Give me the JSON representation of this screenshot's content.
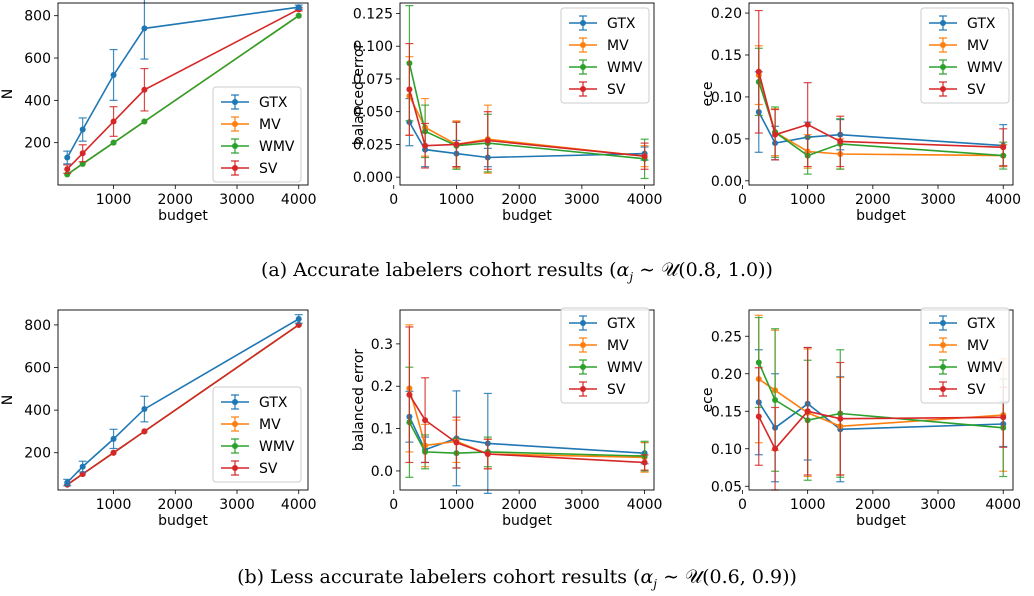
{
  "captions": {
    "a": {
      "prefix": "(a) Accurate labelers cohort results (",
      "alpha": "α",
      "sub": "j",
      "rel": " ∼ ",
      "dist": "𝒰",
      "args": "(0.8, 1.0))"
    },
    "b": {
      "prefix": "(b) Less accurate labelers cohort results (",
      "alpha": "α",
      "sub": "j",
      "rel": " ∼ ",
      "dist": "𝒰",
      "args": "(0.6, 0.9))"
    }
  },
  "colors": {
    "GTX": "#1f77b4",
    "MV": "#ff7f0e",
    "WMV": "#2ca02c",
    "SV": "#d62728"
  },
  "chart_data": [
    {
      "type": "line",
      "xlabel": "budget",
      "ylabel": "N",
      "xlim": [
        100,
        4150
      ],
      "ylim": [
        0,
        860
      ],
      "xticks": [
        1000,
        2000,
        3000,
        4000
      ],
      "yticks": [
        200,
        400,
        600,
        800
      ],
      "legend": "lower-right",
      "x": [
        250,
        500,
        1000,
        1500,
        4000
      ],
      "series": [
        {
          "name": "MV",
          "values": [
            50,
            100,
            200,
            300,
            800
          ],
          "err": [
            0,
            0,
            0,
            0,
            0
          ]
        },
        {
          "name": "WMV",
          "values": [
            50,
            100,
            200,
            300,
            800
          ],
          "err": [
            0,
            0,
            0,
            0,
            0
          ]
        },
        {
          "name": "SV",
          "values": [
            75,
            150,
            300,
            450,
            830
          ],
          "err": [
            20,
            40,
            70,
            100,
            8
          ]
        },
        {
          "name": "GTX",
          "values": [
            130,
            262,
            520,
            740,
            840
          ],
          "err": [
            30,
            55,
            120,
            145,
            10
          ]
        }
      ]
    },
    {
      "type": "line",
      "xlabel": "budget",
      "ylabel": "balanced error",
      "xlim": [
        100,
        4150
      ],
      "ylim": [
        -0.006,
        0.133
      ],
      "xticks": [
        0,
        1000,
        2000,
        3000,
        4000
      ],
      "yticks": [
        0.0,
        0.025,
        0.05,
        0.075,
        0.1,
        0.125
      ],
      "yticklabels": [
        "0.000",
        "0.025",
        "0.050",
        "0.075",
        "0.100",
        "0.125"
      ],
      "legend": "upper-right",
      "x": [
        250,
        500,
        1000,
        1500,
        4000
      ],
      "series": [
        {
          "name": "GTX",
          "values": [
            0.042,
            0.021,
            0.018,
            0.015,
            0.018
          ],
          "err": [
            0.018,
            0.013,
            0.01,
            0.007,
            0.005
          ]
        },
        {
          "name": "MV",
          "values": [
            0.062,
            0.038,
            0.025,
            0.029,
            0.016
          ],
          "err": [
            0.03,
            0.022,
            0.018,
            0.026,
            0.008
          ]
        },
        {
          "name": "WMV",
          "values": [
            0.087,
            0.035,
            0.024,
            0.026,
            0.014
          ],
          "err": [
            0.044,
            0.02,
            0.018,
            0.022,
            0.015
          ]
        },
        {
          "name": "SV",
          "values": [
            0.067,
            0.024,
            0.025,
            0.028,
            0.016
          ],
          "err": [
            0.035,
            0.017,
            0.017,
            0.022,
            0.01
          ]
        }
      ]
    },
    {
      "type": "line",
      "xlabel": "budget",
      "ylabel": "ece",
      "xlim": [
        100,
        4150
      ],
      "ylim": [
        -0.005,
        0.212
      ],
      "xticks": [
        0,
        1000,
        2000,
        3000,
        4000
      ],
      "yticks": [
        0.0,
        0.05,
        0.1,
        0.15,
        0.2
      ],
      "yticklabels": [
        "0.00",
        "0.05",
        "0.10",
        "0.15",
        "0.20"
      ],
      "legend": "upper-right",
      "x": [
        250,
        500,
        1000,
        1500,
        4000
      ],
      "series": [
        {
          "name": "GTX",
          "values": [
            0.082,
            0.045,
            0.052,
            0.055,
            0.042
          ],
          "err": [
            0.048,
            0.02,
            0.018,
            0.018,
            0.025
          ]
        },
        {
          "name": "MV",
          "values": [
            0.126,
            0.058,
            0.035,
            0.032,
            0.03
          ],
          "err": [
            0.035,
            0.028,
            0.02,
            0.018,
            0.013
          ]
        },
        {
          "name": "WMV",
          "values": [
            0.118,
            0.058,
            0.03,
            0.044,
            0.03
          ],
          "err": [
            0.04,
            0.03,
            0.022,
            0.03,
            0.016
          ]
        },
        {
          "name": "SV",
          "values": [
            0.13,
            0.055,
            0.067,
            0.047,
            0.04
          ],
          "err": [
            0.073,
            0.03,
            0.05,
            0.03,
            0.022
          ]
        }
      ]
    },
    {
      "type": "line",
      "xlabel": "budget",
      "ylabel": "N",
      "xlim": [
        100,
        4150
      ],
      "ylim": [
        25,
        870
      ],
      "xticks": [
        1000,
        2000,
        3000,
        4000
      ],
      "yticks": [
        200,
        400,
        600,
        800
      ],
      "legend": "lower-right",
      "x": [
        250,
        500,
        1000,
        1500,
        4000
      ],
      "series": [
        {
          "name": "MV",
          "values": [
            50,
            100,
            200,
            300,
            800
          ],
          "err": [
            0,
            0,
            0,
            0,
            0
          ]
        },
        {
          "name": "WMV",
          "values": [
            50,
            100,
            200,
            300,
            800
          ],
          "err": [
            0,
            0,
            0,
            0,
            0
          ]
        },
        {
          "name": "SV",
          "values": [
            50,
            100,
            200,
            300,
            800
          ],
          "err": [
            0,
            0,
            0,
            0,
            0
          ]
        },
        {
          "name": "GTX",
          "values": [
            60,
            135,
            265,
            405,
            828
          ],
          "err": [
            15,
            25,
            45,
            60,
            20
          ]
        }
      ]
    },
    {
      "type": "line",
      "xlabel": "budget",
      "ylabel": "balanced error",
      "xlim": [
        100,
        4150
      ],
      "ylim": [
        -0.045,
        0.38
      ],
      "xticks": [
        0,
        1000,
        2000,
        3000,
        4000
      ],
      "yticks": [
        0.0,
        0.1,
        0.2,
        0.3
      ],
      "yticklabels": [
        "0.0",
        "0.1",
        "0.2",
        "0.3"
      ],
      "legend": "upper-right",
      "x": [
        250,
        500,
        1000,
        1500,
        4000
      ],
      "series": [
        {
          "name": "GTX",
          "values": [
            0.128,
            0.05,
            0.077,
            0.065,
            0.042
          ],
          "err": [
            0.06,
            0.03,
            0.112,
            0.118,
            0.025
          ]
        },
        {
          "name": "MV",
          "values": [
            0.195,
            0.06,
            0.07,
            0.04,
            0.032
          ],
          "err": [
            0.15,
            0.05,
            0.05,
            0.035,
            0.035
          ]
        },
        {
          "name": "WMV",
          "values": [
            0.115,
            0.045,
            0.042,
            0.045,
            0.035
          ],
          "err": [
            0.13,
            0.04,
            0.035,
            0.035,
            0.035
          ]
        },
        {
          "name": "SV",
          "values": [
            0.18,
            0.12,
            0.067,
            0.04,
            0.02
          ],
          "err": [
            0.16,
            0.1,
            0.06,
            0.035,
            0.018
          ]
        }
      ]
    },
    {
      "type": "line",
      "xlabel": "budget",
      "ylabel": "ece",
      "xlim": [
        100,
        4150
      ],
      "ylim": [
        0.045,
        0.285
      ],
      "xticks": [
        0,
        1000,
        2000,
        3000,
        4000
      ],
      "yticks": [
        0.05,
        0.1,
        0.15,
        0.2,
        0.25
      ],
      "yticklabels": [
        "0.05",
        "0.10",
        "0.15",
        "0.20",
        "0.25"
      ],
      "legend": "upper-right",
      "x": [
        250,
        500,
        1000,
        1500,
        4000
      ],
      "series": [
        {
          "name": "GTX",
          "values": [
            0.162,
            0.128,
            0.16,
            0.126,
            0.133
          ],
          "err": [
            0.07,
            0.072,
            0.075,
            0.07,
            0.03
          ]
        },
        {
          "name": "MV",
          "values": [
            0.193,
            0.178,
            0.148,
            0.13,
            0.145
          ],
          "err": [
            0.085,
            0.08,
            0.085,
            0.065,
            0.075
          ]
        },
        {
          "name": "WMV",
          "values": [
            0.215,
            0.165,
            0.138,
            0.147,
            0.128
          ],
          "err": [
            0.06,
            0.095,
            0.08,
            0.085,
            0.065
          ]
        },
        {
          "name": "SV",
          "values": [
            0.143,
            0.1,
            0.15,
            0.14,
            0.142
          ],
          "err": [
            0.065,
            0.055,
            0.085,
            0.075,
            0.04
          ]
        }
      ]
    }
  ]
}
